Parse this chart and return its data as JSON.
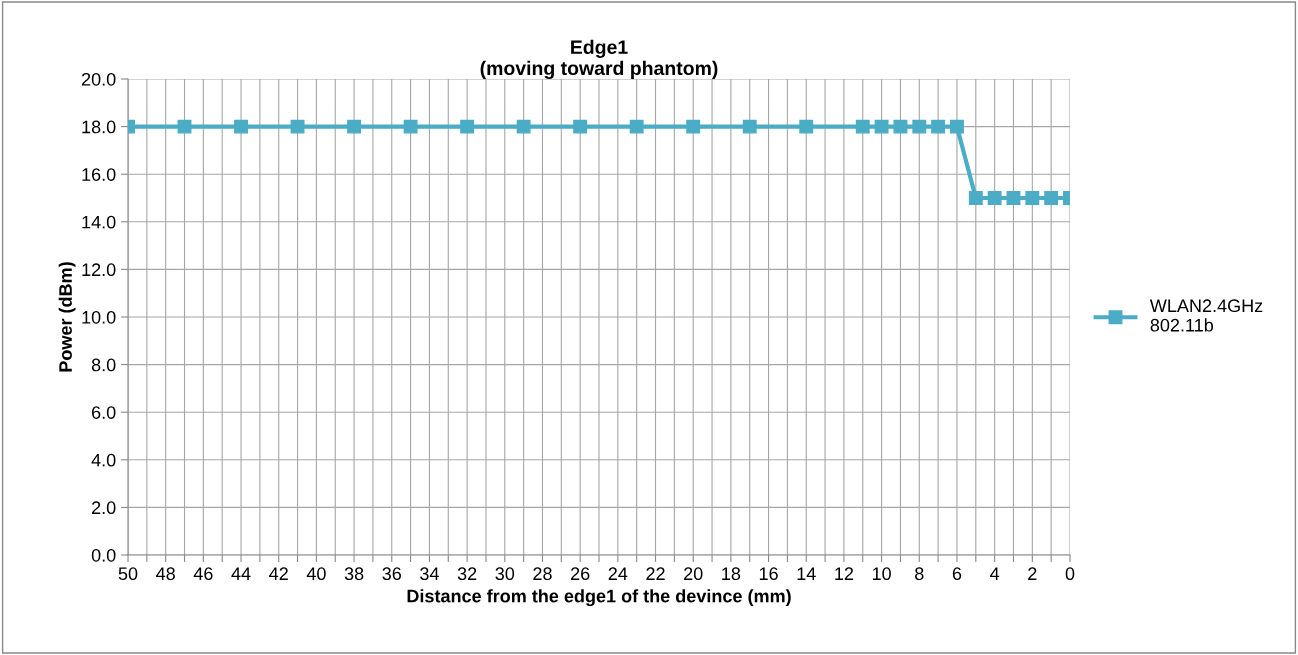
{
  "chart_data": {
    "type": "line",
    "title": "Edge1\n(moving toward phantom)",
    "xlabel": "Distance from the edge1 of the devince (mm)",
    "ylabel": "Power (dBm)",
    "x": [
      50,
      47,
      44,
      41,
      38,
      35,
      32,
      29,
      26,
      23,
      20,
      17,
      14,
      11,
      10,
      9,
      8,
      7,
      6,
      5,
      4,
      3,
      2,
      1,
      0
    ],
    "series": [
      {
        "name": "WLAN2.4GHz\n802.11b",
        "color": "#4bacc6",
        "values": [
          18,
          18,
          18,
          18,
          18,
          18,
          18,
          18,
          18,
          18,
          18,
          18,
          18,
          18,
          18,
          18,
          18,
          18,
          18,
          15,
          15,
          15,
          15,
          15,
          15
        ]
      }
    ],
    "xlim": [
      50,
      0
    ],
    "xticks": [
      50,
      {
        "value": 49,
        "label": null
      },
      48,
      {
        "value": 47,
        "label": null
      },
      46,
      {
        "value": 45,
        "label": null
      },
      44,
      {
        "value": 43,
        "label": null
      },
      42,
      {
        "value": 41,
        "label": null
      },
      40,
      {
        "value": 39,
        "label": null
      },
      38,
      {
        "value": 37,
        "label": null
      },
      36,
      {
        "value": 35,
        "label": null
      },
      34,
      {
        "value": 33,
        "label": null
      },
      32,
      {
        "value": 31,
        "label": null
      },
      30,
      {
        "value": 29,
        "label": null
      },
      28,
      {
        "value": 27,
        "label": null
      },
      26,
      {
        "value": 25,
        "label": null
      },
      24,
      {
        "value": 23,
        "label": null
      },
      22,
      {
        "value": 21,
        "label": null
      },
      20,
      {
        "value": 19,
        "label": null
      },
      18,
      {
        "value": 17,
        "label": null
      },
      16,
      {
        "value": 15,
        "label": null
      },
      14,
      {
        "value": 13,
        "label": null
      },
      12,
      {
        "value": 11,
        "label": null
      },
      10,
      {
        "value": 9,
        "label": null
      },
      8,
      {
        "value": 7,
        "label": null
      },
      6,
      {
        "value": 5,
        "label": null
      },
      4,
      {
        "value": 3,
        "label": null
      },
      2,
      {
        "value": 1,
        "label": null
      },
      0
    ],
    "ylim": [
      0,
      20
    ],
    "yticks": [
      {
        "value": 0,
        "label": "0.0"
      },
      {
        "value": 2,
        "label": "2.0"
      },
      {
        "value": 4,
        "label": "4.0"
      },
      {
        "value": 6,
        "label": "6.0"
      },
      {
        "value": 8,
        "label": "8.0"
      },
      {
        "value": 10,
        "label": "10.0"
      },
      {
        "value": 12,
        "label": "12.0"
      },
      {
        "value": 14,
        "label": "14.0"
      },
      {
        "value": 16,
        "label": "16.0"
      },
      {
        "value": 18,
        "label": "18.0"
      },
      {
        "value": 20,
        "label": "20.0"
      }
    ],
    "grid": true,
    "legend": "right",
    "marker": "square",
    "line_style": "solid"
  }
}
